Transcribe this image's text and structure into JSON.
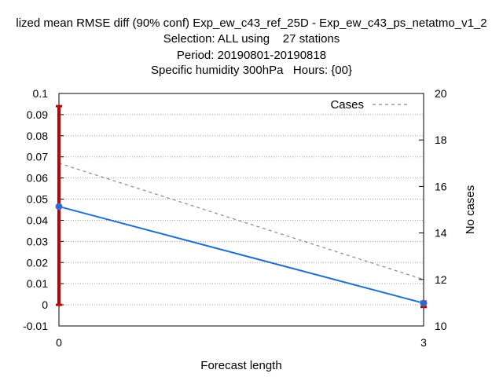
{
  "titles": {
    "line1": "lized mean RMSE diff (90% conf) Exp_ew_c43_ref_25D - Exp_ew_c43_ps_netatmo_v1_2",
    "line2": "Selection: ALL using    27 stations",
    "line3": "Period: 20190801-20190818",
    "line4": "Specific humidity 300hPa   Hours: {00}"
  },
  "chart_data": {
    "type": "line",
    "xlabel": "Forecast length",
    "ylabel": "",
    "y2label": "No cases",
    "x": [
      0,
      3
    ],
    "x_ticks": [
      "0",
      "3"
    ],
    "xlim": [
      0,
      3
    ],
    "ylim": [
      -0.01,
      0.1
    ],
    "y_ticks": [
      "-0.01",
      "0",
      "0.01",
      "0.02",
      "0.03",
      "0.04",
      "0.05",
      "0.06",
      "0.07",
      "0.08",
      "0.09",
      "0.1"
    ],
    "y2lim": [
      10,
      20
    ],
    "y2_ticks": [
      "10",
      "12",
      "14",
      "16",
      "18",
      "20"
    ],
    "grid": true,
    "legend": {
      "position": "top-right",
      "entries": [
        "Cases"
      ]
    },
    "series": [
      {
        "values": [
          0.0465,
          0.0008
        ],
        "color": "#1f6fd0",
        "style": "solid",
        "axis": "y1"
      },
      {
        "name": "Cases",
        "values": [
          17,
          12
        ],
        "color": "#888888",
        "style": "dashed",
        "axis": "y2"
      }
    ],
    "error_bars": [
      {
        "x": 0,
        "low": 0,
        "high": 0.094,
        "color": "#c00000"
      },
      {
        "x": 3,
        "low": -0.001,
        "high": 0.0015,
        "color": "#c00000"
      }
    ]
  }
}
